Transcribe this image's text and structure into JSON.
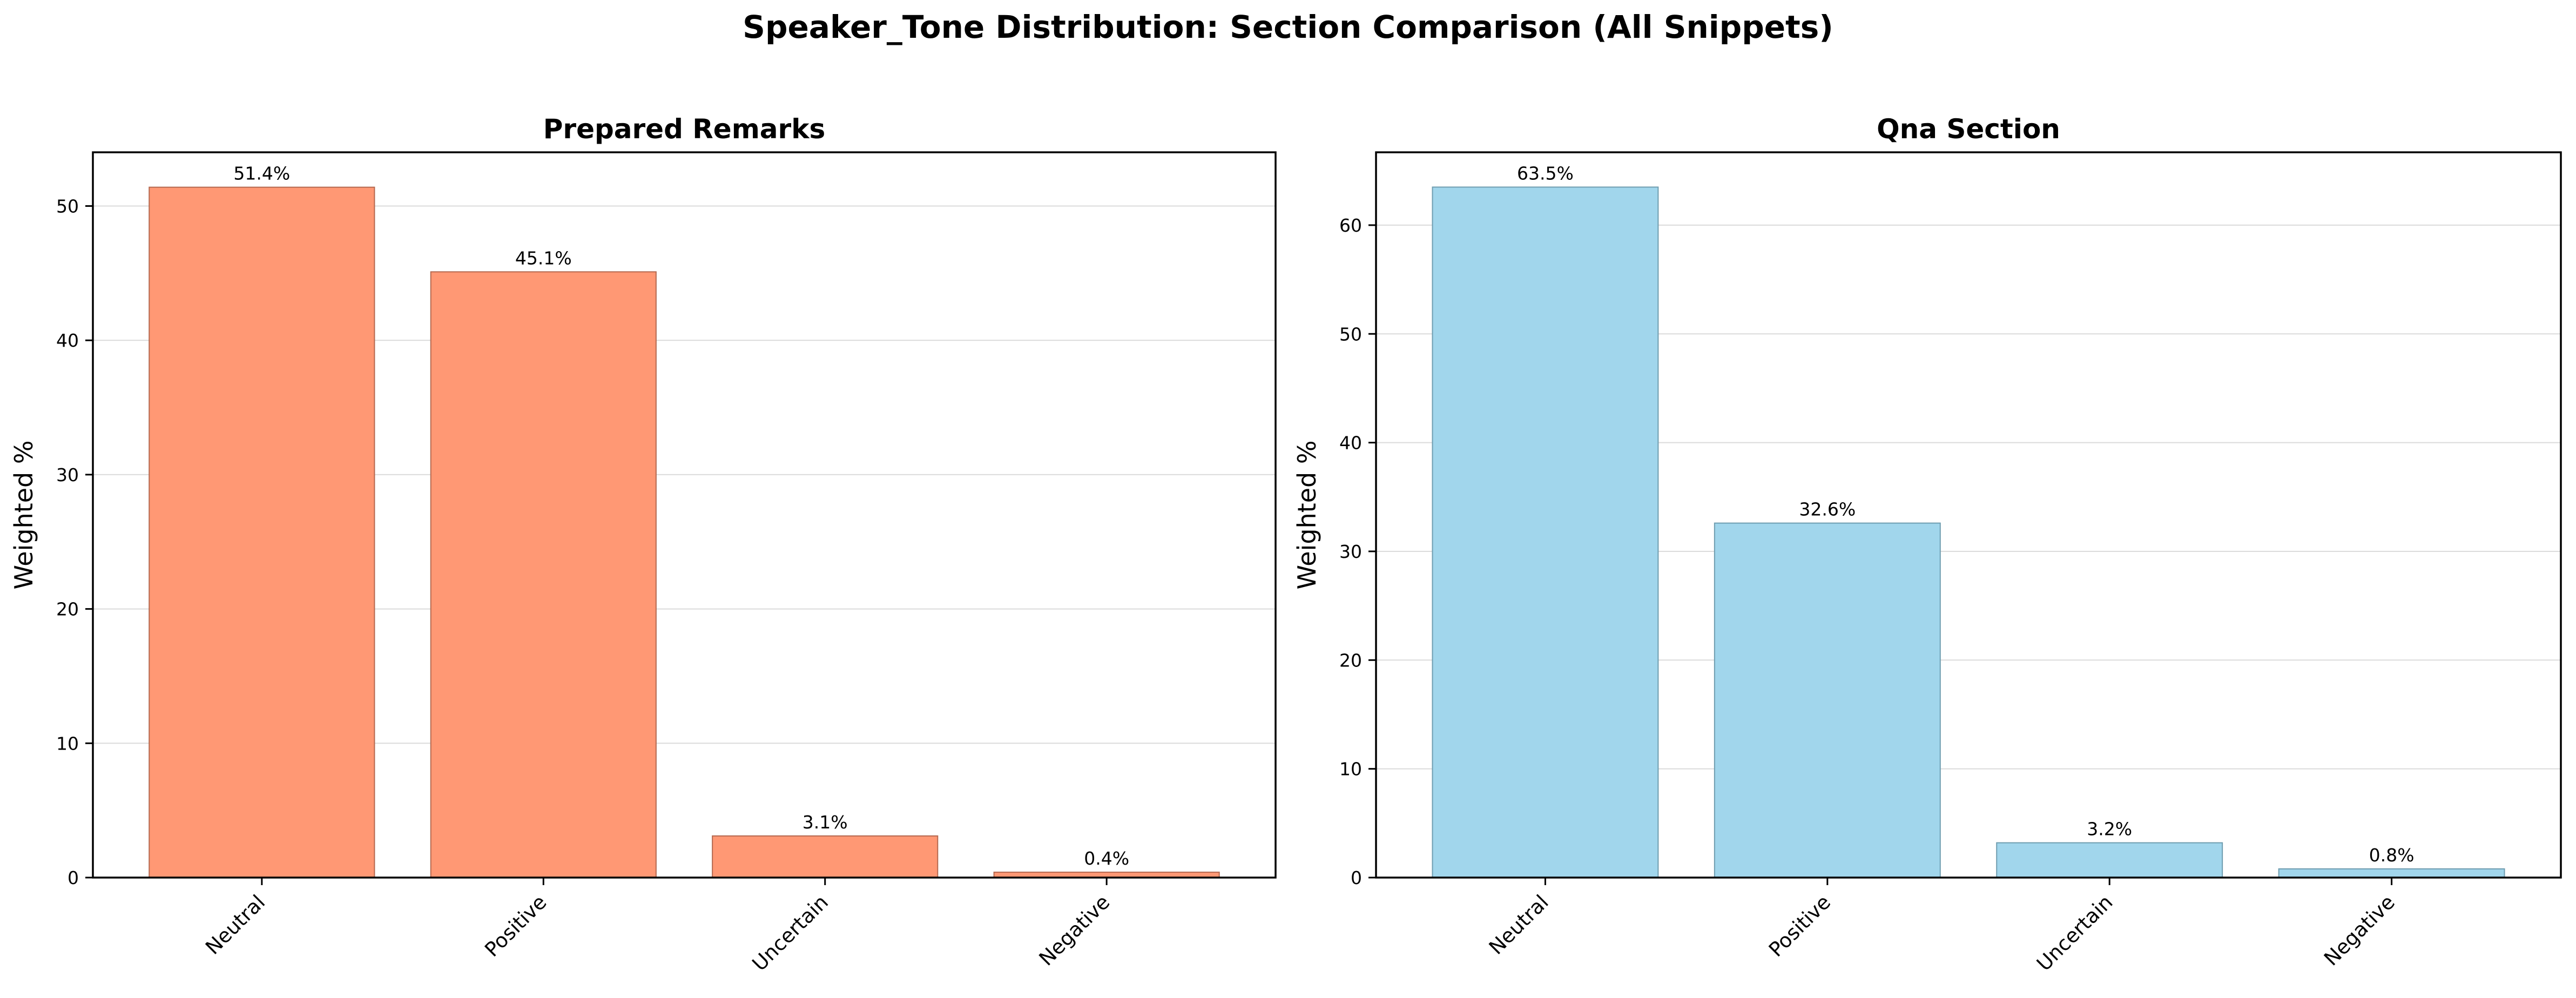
{
  "figure_title": "Speaker_Tone Distribution: Section Comparison (All Snippets)",
  "chart_data": [
    {
      "type": "bar",
      "title": "Prepared Remarks",
      "xlabel": "",
      "ylabel": "Weighted %",
      "categories": [
        "Neutral",
        "Positive",
        "Uncertain",
        "Negative"
      ],
      "values": [
        51.4,
        45.1,
        3.1,
        0.4
      ],
      "value_labels": [
        "51.4%",
        "45.1%",
        "3.1%",
        "0.4%"
      ],
      "ylim": [
        0,
        54
      ],
      "yticks": [
        0,
        10,
        20,
        30,
        40,
        50
      ],
      "grid": true,
      "color": "#FF9874",
      "edge_color": "#B4684F"
    },
    {
      "type": "bar",
      "title": "Qna Section",
      "xlabel": "",
      "ylabel": "Weighted %",
      "categories": [
        "Neutral",
        "Positive",
        "Uncertain",
        "Negative"
      ],
      "values": [
        63.5,
        32.6,
        3.2,
        0.8
      ],
      "value_labels": [
        "63.5%",
        "32.6%",
        "3.2%",
        "0.8%"
      ],
      "ylim": [
        0,
        66.7
      ],
      "yticks": [
        0,
        10,
        20,
        30,
        40,
        50,
        60
      ],
      "grid": true,
      "color": "#A1D6EC",
      "edge_color": "#6F9DB0"
    }
  ]
}
